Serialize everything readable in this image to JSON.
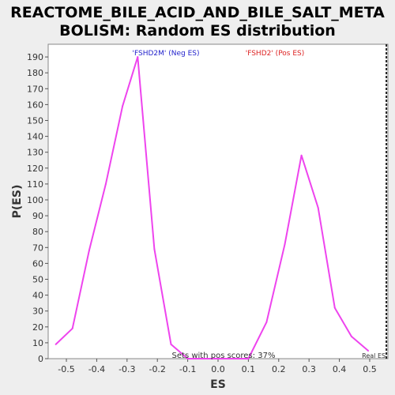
{
  "chart_data": {
    "type": "line",
    "title_line1": "REACTOME_BILE_ACID_AND_BILE_SALT_META",
    "title_line2": "BOLISM: Random ES distribution",
    "xlabel": "ES",
    "ylabel": "P(ES)",
    "xlim": [
      -0.56,
      0.56
    ],
    "ylim": [
      0,
      198
    ],
    "xticks": [
      -0.5,
      -0.4,
      -0.3,
      -0.2,
      -0.1,
      0.0,
      0.1,
      0.2,
      0.3,
      0.4,
      0.5
    ],
    "xtick_labels": [
      "-0.5",
      "-0.4",
      "-0.3",
      "-0.2",
      "-0.1",
      "0.0",
      "0.1",
      "0.2",
      "0.3",
      "0.4",
      "0.5"
    ],
    "yticks": [
      0,
      10,
      20,
      30,
      40,
      50,
      60,
      70,
      80,
      90,
      100,
      110,
      120,
      130,
      140,
      150,
      160,
      170,
      180,
      190
    ],
    "ytick_labels": [
      "0",
      "10",
      "20",
      "30",
      "40",
      "50",
      "60",
      "70",
      "80",
      "90",
      "100",
      "110",
      "120",
      "130",
      "140",
      "150",
      "160",
      "170",
      "180",
      "190"
    ],
    "grid": false,
    "series": [
      {
        "color": "#ee44ee",
        "x": [
          -0.535,
          -0.48,
          -0.425,
          -0.37,
          -0.315,
          -0.265,
          -0.21,
          -0.155,
          -0.1,
          0.1,
          0.16,
          0.22,
          0.275,
          0.33,
          0.385,
          0.44,
          0.495
        ],
        "y": [
          9,
          19,
          68,
          110,
          159,
          190,
          69,
          9,
          0,
          0,
          23,
          72,
          128,
          95,
          32,
          14,
          5
        ]
      }
    ],
    "annotations": {
      "neg_label": "'FSHD2M' (Neg ES)",
      "neg_color": "#2222cc",
      "pos_label": "'FSHD2' (Pos ES)",
      "pos_color": "#dd2222",
      "footer": "Sets with pos scores: 37%",
      "real_es_label": "Real ES",
      "real_es_x": 0.555
    }
  }
}
